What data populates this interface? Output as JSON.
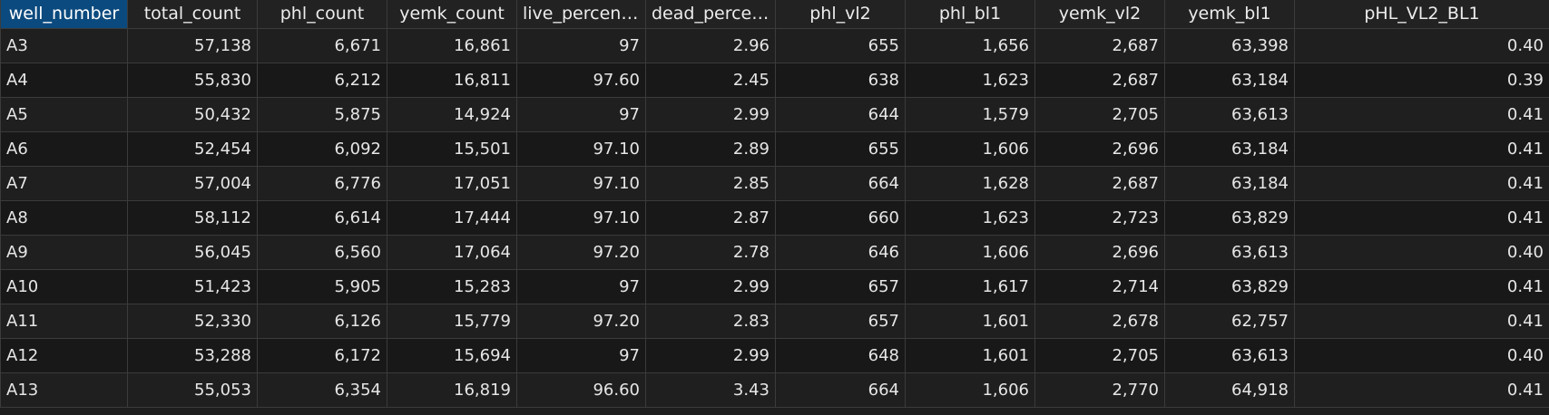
{
  "grid": {
    "columns": [
      "well_number",
      "total_count",
      "phl_count",
      "yemk_count",
      "live_percenta...",
      "dead_percen...",
      "phl_vl2",
      "phl_bl1",
      "yemk_vl2",
      "yemk_bl1",
      "pHL_VL2_BL1"
    ],
    "selected_column": "well_number",
    "rows": [
      [
        "A3",
        "57,138",
        "6,671",
        "16,861",
        "97",
        "2.96",
        "655",
        "1,656",
        "2,687",
        "63,398",
        "0.40"
      ],
      [
        "A4",
        "55,830",
        "6,212",
        "16,811",
        "97.60",
        "2.45",
        "638",
        "1,623",
        "2,687",
        "63,184",
        "0.39"
      ],
      [
        "A5",
        "50,432",
        "5,875",
        "14,924",
        "97",
        "2.99",
        "644",
        "1,579",
        "2,705",
        "63,613",
        "0.41"
      ],
      [
        "A6",
        "52,454",
        "6,092",
        "15,501",
        "97.10",
        "2.89",
        "655",
        "1,606",
        "2,696",
        "63,184",
        "0.41"
      ],
      [
        "A7",
        "57,004",
        "6,776",
        "17,051",
        "97.10",
        "2.85",
        "664",
        "1,628",
        "2,687",
        "63,184",
        "0.41"
      ],
      [
        "A8",
        "58,112",
        "6,614",
        "17,444",
        "97.10",
        "2.87",
        "660",
        "1,623",
        "2,723",
        "63,829",
        "0.41"
      ],
      [
        "A9",
        "56,045",
        "6,560",
        "17,064",
        "97.20",
        "2.78",
        "646",
        "1,606",
        "2,696",
        "63,613",
        "0.40"
      ],
      [
        "A10",
        "51,423",
        "5,905",
        "15,283",
        "97",
        "2.99",
        "657",
        "1,617",
        "2,714",
        "63,829",
        "0.41"
      ],
      [
        "A11",
        "52,330",
        "6,126",
        "15,779",
        "97.20",
        "2.83",
        "657",
        "1,601",
        "2,678",
        "62,757",
        "0.41"
      ],
      [
        "A12",
        "53,288",
        "6,172",
        "15,694",
        "97",
        "2.99",
        "648",
        "1,601",
        "2,705",
        "63,613",
        "0.40"
      ],
      [
        "A13",
        "55,053",
        "6,354",
        "16,819",
        "96.60",
        "3.43",
        "664",
        "1,606",
        "2,770",
        "64,918",
        "0.41"
      ]
    ]
  }
}
